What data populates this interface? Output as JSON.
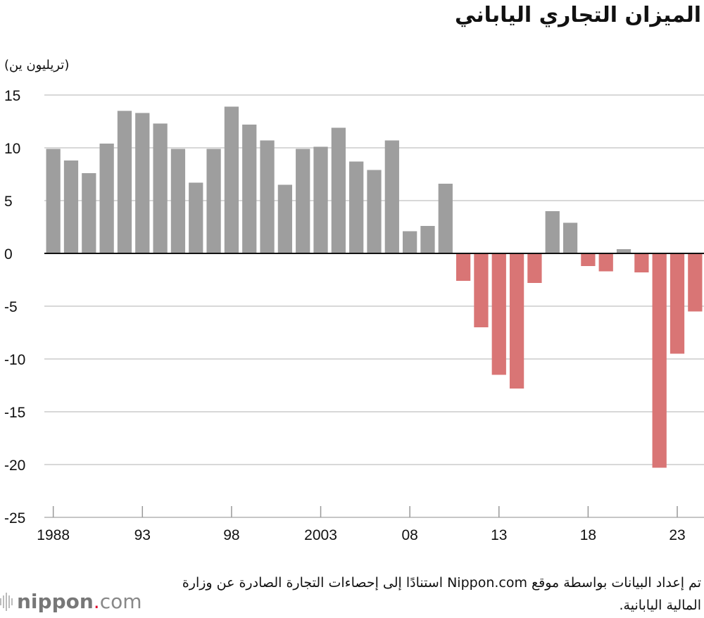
{
  "chart_data": {
    "type": "bar",
    "title": "الميزان التجاري الياباني",
    "ylabel": "(تريليون ين)",
    "categories": [
      "1988",
      "1989",
      "1990",
      "1991",
      "1992",
      "1993",
      "1994",
      "1995",
      "1996",
      "1997",
      "1998",
      "1999",
      "2000",
      "2001",
      "2002",
      "2003",
      "2004",
      "2005",
      "2006",
      "2007",
      "2008",
      "2009",
      "2010",
      "2011",
      "2012",
      "2013",
      "2014",
      "2015",
      "2016",
      "2017",
      "2018",
      "2019",
      "2020",
      "2021",
      "2022",
      "2023",
      "2024"
    ],
    "values": [
      9.9,
      8.8,
      7.6,
      10.4,
      13.5,
      13.3,
      12.3,
      9.9,
      6.7,
      9.9,
      13.9,
      12.2,
      10.7,
      6.5,
      9.9,
      10.1,
      11.9,
      8.7,
      7.9,
      10.7,
      2.1,
      2.6,
      6.6,
      -2.6,
      -7.0,
      -11.5,
      -12.8,
      -2.8,
      4.0,
      2.9,
      -1.2,
      -1.7,
      0.4,
      -1.8,
      -20.3,
      -9.5,
      -5.5
    ],
    "ylim": [
      -25,
      15
    ],
    "yticks": [
      "15",
      "10",
      "5",
      "0",
      "-5",
      "-10",
      "-15",
      "-20",
      "-25"
    ],
    "xtick_labels": [
      {
        "index": 0,
        "label": "1988"
      },
      {
        "index": 5,
        "label": "93"
      },
      {
        "index": 10,
        "label": "98"
      },
      {
        "index": 15,
        "label": "2003"
      },
      {
        "index": 20,
        "label": "08"
      },
      {
        "index": 25,
        "label": "13"
      },
      {
        "index": 30,
        "label": "18"
      },
      {
        "index": 35,
        "label": "23"
      }
    ],
    "grid": true,
    "colors": {
      "positive": "#9e9e9e",
      "negative": "#d97575",
      "grid": "#cccccc"
    }
  },
  "source": "تم إعداد البيانات بواسطة موقع Nippon.com استنادًا إلى إحصاءات التجارة الصادرة عن وزارة المالية اليابانية.",
  "logo": {
    "name": "nippon",
    "dot": ".",
    "suffix": "com"
  }
}
